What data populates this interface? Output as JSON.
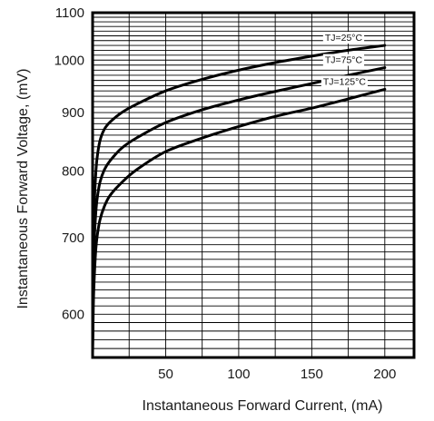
{
  "chart_data": {
    "type": "line",
    "xlabel": "Instantaneous Forward Current, (mA)",
    "ylabel": "Instantaneous Forward Voltage, (mV)",
    "xlim": [
      0,
      220
    ],
    "ylim": [
      550,
      1100
    ],
    "y_scale": "log",
    "grid": true,
    "x_ticks": [
      50,
      100,
      150,
      200
    ],
    "y_ticks": [
      600,
      700,
      800,
      900,
      1000,
      1100
    ],
    "series": [
      {
        "name": "TJ=25°C",
        "x": [
          0,
          0.5,
          1,
          2,
          3,
          5,
          8,
          12,
          20,
          30,
          50,
          75,
          100,
          125,
          150,
          175,
          200
        ],
        "y": [
          555,
          700,
          740,
          790,
          820,
          850,
          870,
          883,
          900,
          915,
          940,
          962,
          980,
          995,
          1008,
          1020,
          1030
        ]
      },
      {
        "name": "TJ=75°C",
        "x": [
          0,
          0.5,
          1,
          2,
          3,
          5,
          8,
          12,
          20,
          30,
          50,
          75,
          100,
          125,
          150,
          175,
          200
        ],
        "y": [
          560,
          650,
          690,
          730,
          755,
          782,
          802,
          817,
          838,
          855,
          882,
          905,
          923,
          939,
          954,
          970,
          985
        ]
      },
      {
        "name": "TJ=125°C",
        "x": [
          0,
          0.5,
          1,
          2,
          3,
          5,
          8,
          12,
          20,
          30,
          50,
          75,
          100,
          125,
          150,
          175,
          200
        ],
        "y": [
          555,
          610,
          640,
          678,
          700,
          725,
          745,
          762,
          782,
          802,
          832,
          855,
          875,
          893,
          908,
          925,
          943
        ]
      }
    ]
  }
}
